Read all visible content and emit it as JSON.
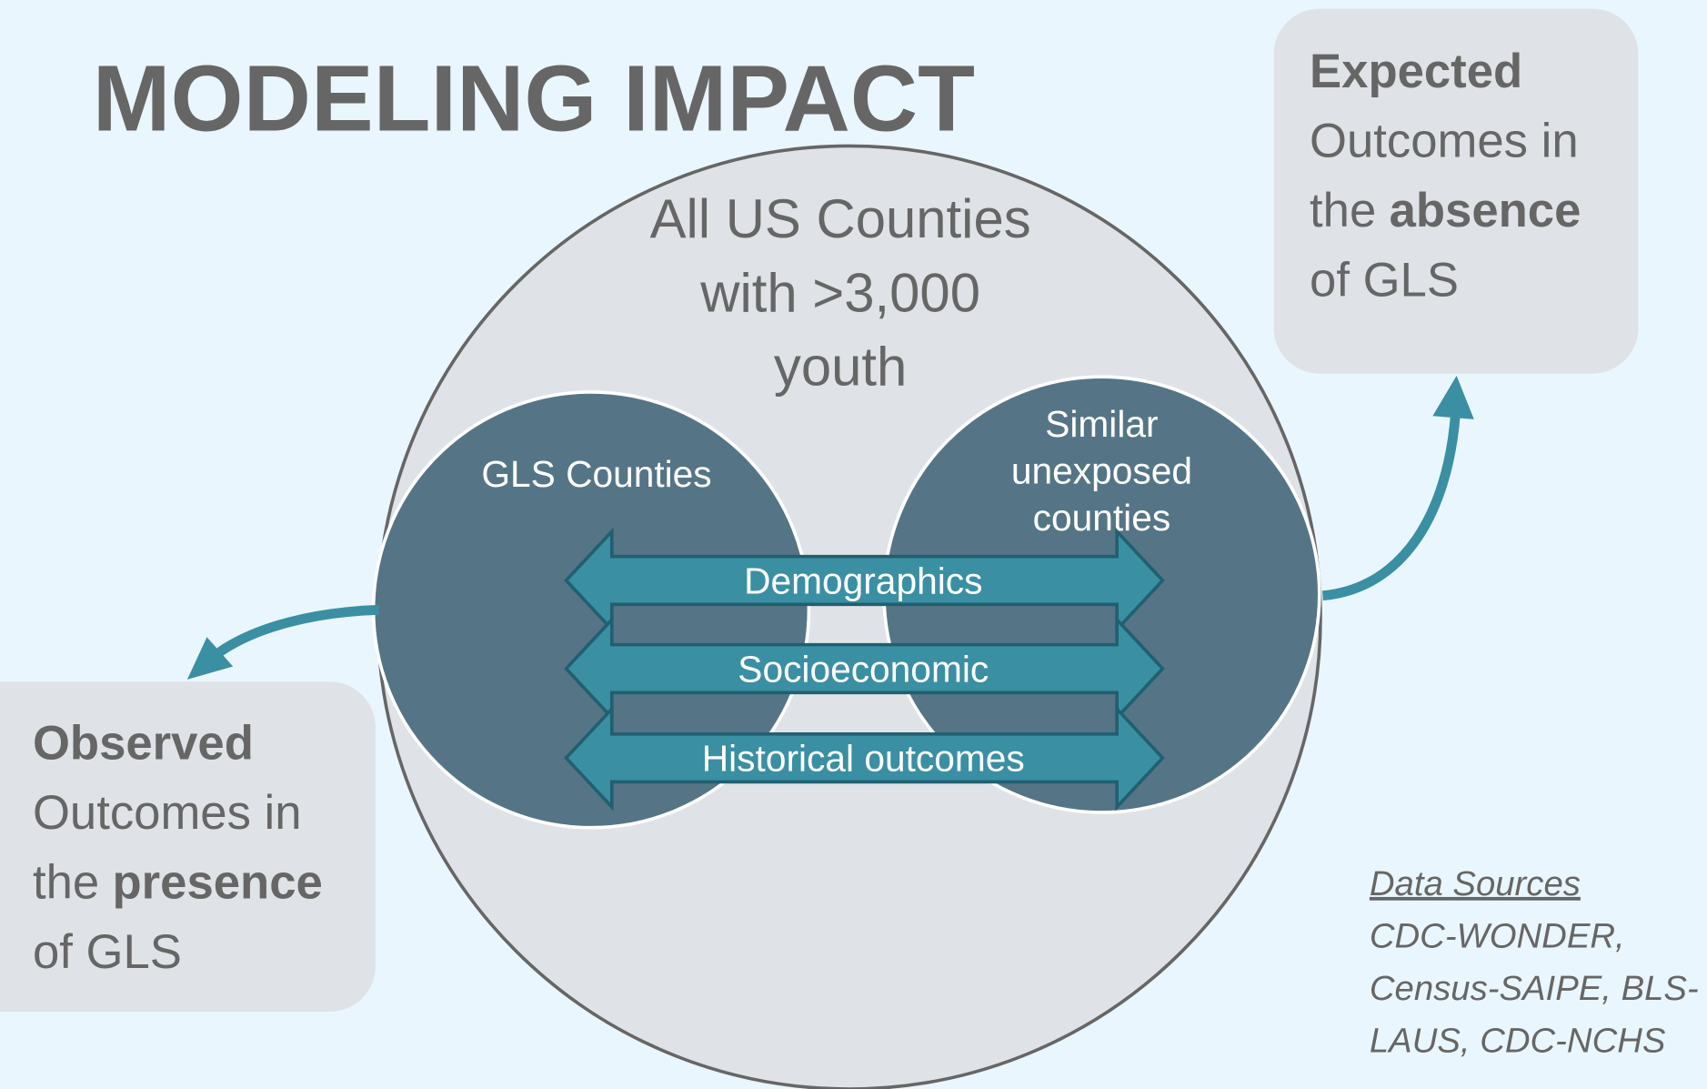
{
  "title": "MODELING IMPACT",
  "population": {
    "lines": [
      "All US Counties",
      "with >3,000",
      "youth"
    ]
  },
  "groups": [
    {
      "lines": [
        "GLS Counties"
      ]
    },
    {
      "lines": [
        "Similar",
        "unexposed",
        "counties"
      ]
    }
  ],
  "matching": [
    "Demographics",
    "Socioeconomic",
    "Historical outcomes"
  ],
  "outcomes": [
    {
      "lines": [
        [
          {
            "text": "Expected",
            "bold": true
          }
        ],
        [
          {
            "text": "Outcomes in",
            "bold": false
          }
        ],
        [
          {
            "text": "the",
            "bold": false
          },
          {
            "text": "absence",
            "bold": true
          }
        ],
        [
          {
            "text": "of GLS",
            "bold": false
          }
        ]
      ]
    },
    {
      "lines": [
        [
          {
            "text": "Observed",
            "bold": true
          }
        ],
        [
          {
            "text": "Outcomes in",
            "bold": false
          }
        ],
        [
          {
            "text": "the",
            "bold": false
          },
          {
            "text": "presence",
            "bold": true
          }
        ],
        [
          {
            "text": "of GLS",
            "bold": false
          }
        ]
      ]
    }
  ],
  "data_sources": {
    "heading": "Data Sources",
    "lines": [
      "CDC-WONDER,",
      "Census-SAIPE, BLS-",
      "LAUS, CDC-NCHS"
    ]
  }
}
